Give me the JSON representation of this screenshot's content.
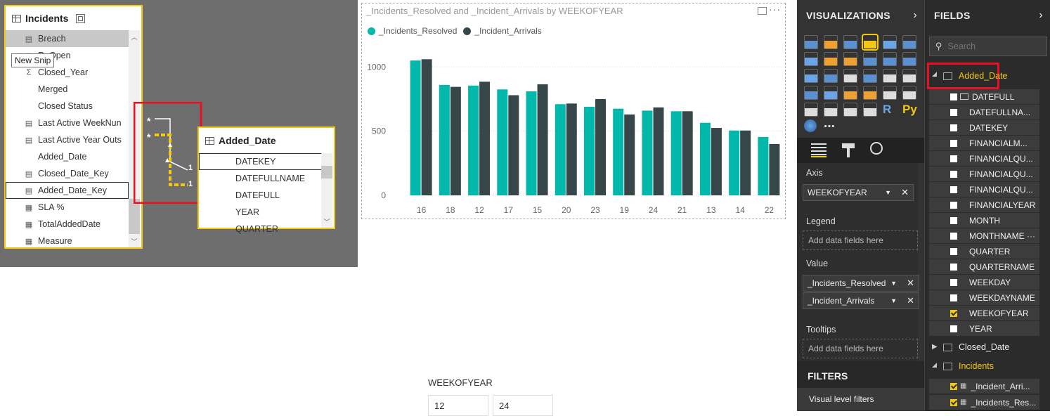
{
  "model": {
    "incidents": {
      "title": "Incidents",
      "fields": [
        {
          "label": "Breach",
          "icon": "calc"
        },
        {
          "label": "ReOpen",
          "icon": "calc"
        },
        {
          "label": "Closed_Year",
          "icon": "sigma"
        },
        {
          "label": "Merged",
          "icon": "none"
        },
        {
          "label": "Closed Status",
          "icon": "none"
        },
        {
          "label": "Last Active WeekNun",
          "icon": "calc"
        },
        {
          "label": "Last Active Year Outs",
          "icon": "calc"
        },
        {
          "label": "Added_Date",
          "icon": "none"
        },
        {
          "label": "Closed_Date_Key",
          "icon": "calc"
        },
        {
          "label": "Added_Date_Key",
          "icon": "calc"
        },
        {
          "label": "SLA %",
          "icon": "measure"
        },
        {
          "label": "TotalAddedDate",
          "icon": "measure"
        },
        {
          "label": "Measure",
          "icon": "measure"
        }
      ]
    },
    "tooltip": "New Snip",
    "relationship": {
      "many1": "*",
      "many2": "*",
      "one1": "1",
      "one2": "1"
    },
    "added_date": {
      "title": "Added_Date",
      "fields": [
        "DATEKEY",
        "DATEFULLNAME",
        "DATEFULL",
        "YEAR",
        "QUARTER"
      ]
    }
  },
  "chart_data": {
    "type": "bar",
    "title": "_Incidents_Resolved and _Incident_Arrivals by WEEKOFYEAR",
    "categories": [
      "16",
      "18",
      "12",
      "17",
      "15",
      "20",
      "23",
      "19",
      "24",
      "21",
      "13",
      "14",
      "22"
    ],
    "series": [
      {
        "name": "_Incidents_Resolved",
        "color": "#01b8aa",
        "values": [
          1050,
          860,
          855,
          825,
          810,
          710,
          690,
          675,
          660,
          655,
          565,
          505,
          455
        ]
      },
      {
        "name": "_Incident_Arrivals",
        "color": "#374649",
        "values": [
          1060,
          845,
          885,
          780,
          865,
          715,
          750,
          630,
          685,
          655,
          525,
          505,
          400
        ]
      }
    ],
    "yticks": [
      "1000",
      "500",
      "0"
    ],
    "ylim": [
      0,
      1100
    ],
    "legend": "top-left"
  },
  "slicer": {
    "title": "WEEKOFYEAR",
    "values": [
      "12",
      "24"
    ]
  },
  "visualizations": {
    "title": "VISUALIZATIONS",
    "extra_icons": [
      "R",
      "Py",
      "⋯"
    ],
    "sections": {
      "axis": "Axis",
      "axis_field": "WEEKOFYEAR",
      "legend": "Legend",
      "legend_drop": "Add data fields here",
      "value": "Value",
      "value_fields": [
        "_Incidents_Resolved",
        "_Incident_Arrivals"
      ],
      "tooltips": "Tooltips",
      "tooltips_drop": "Add data fields here"
    },
    "filters_title": "FILTERS",
    "visual_filters": "Visual level filters"
  },
  "fields_pane": {
    "title": "FIELDS",
    "search_placeholder": "Search",
    "added_date_table": "Added_Date",
    "added_date_fields": [
      {
        "label": "DATEFULL",
        "checked": false
      },
      {
        "label": "DATEFULLNA...",
        "checked": false
      },
      {
        "label": "DATEKEY",
        "checked": false
      },
      {
        "label": "FINANCIALM...",
        "checked": false
      },
      {
        "label": "FINANCIALQU...",
        "checked": false
      },
      {
        "label": "FINANCIALQU...",
        "checked": false
      },
      {
        "label": "FINANCIALQU...",
        "checked": false
      },
      {
        "label": "FINANCIALYEAR",
        "checked": false
      },
      {
        "label": "MONTH",
        "checked": false
      },
      {
        "label": "MONTHNAME",
        "checked": false
      },
      {
        "label": "QUARTER",
        "checked": false
      },
      {
        "label": "QUARTERNAME",
        "checked": false
      },
      {
        "label": "WEEKDAY",
        "checked": false
      },
      {
        "label": "WEEKDAYNAME",
        "checked": false
      },
      {
        "label": "WEEKOFYEAR",
        "checked": true
      },
      {
        "label": "YEAR",
        "checked": false
      }
    ],
    "more_options": "···",
    "closed_date_table": "Closed_Date",
    "incidents_table": "Incidents",
    "incidents_fields": [
      {
        "label": "_Incident_Arri...",
        "checked": true
      },
      {
        "label": "_Incidents_Res...",
        "checked": true
      }
    ]
  }
}
